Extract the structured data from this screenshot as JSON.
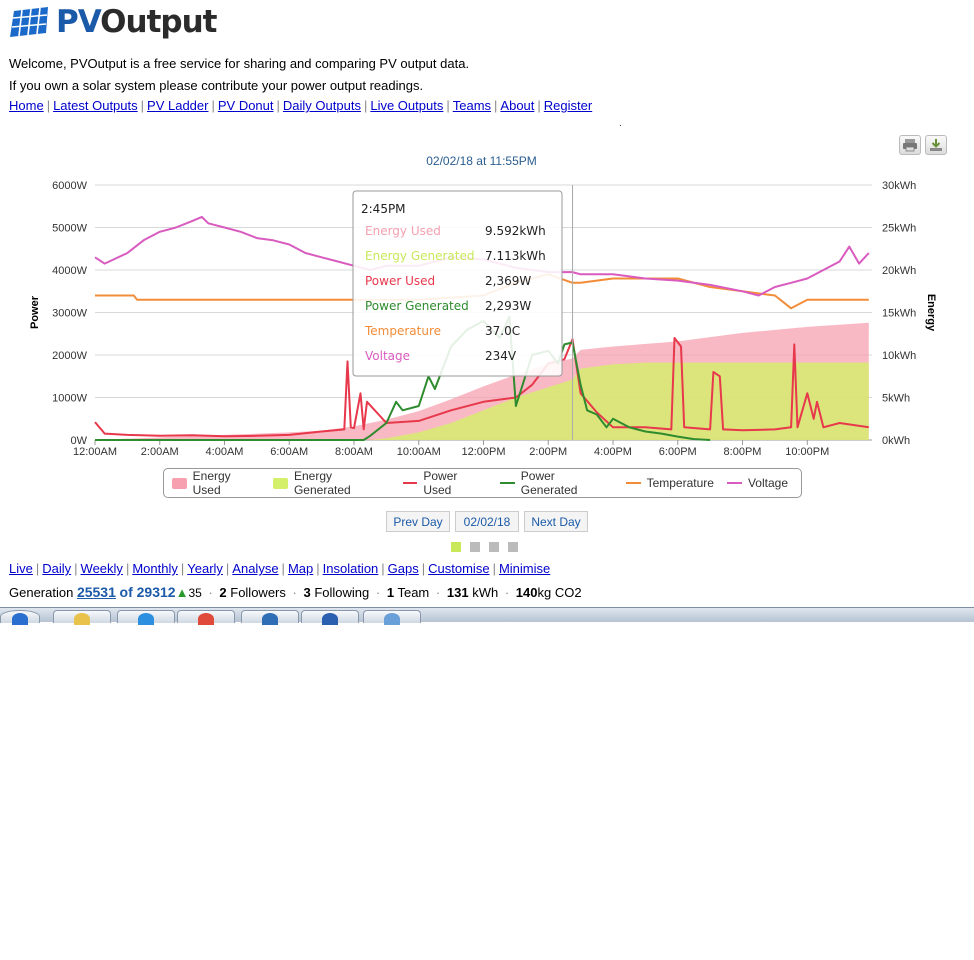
{
  "logo": {
    "text_pv": "PV",
    "text_out": "Output"
  },
  "intro": {
    "line1": "Welcome, PVOutput is a free service for sharing and comparing PV output data.",
    "line2": "If you own a solar system please contribute your power output readings."
  },
  "nav": [
    "Home",
    "Latest Outputs",
    "PV Ladder",
    "PV Donut",
    "Daily Outputs",
    "Live Outputs",
    "Teams",
    "About",
    "Register"
  ],
  "page_dot": ".",
  "chart_buttons": {
    "print_icon": "printer-icon",
    "download_icon": "download-icon"
  },
  "tooltip": {
    "time": "2:45PM",
    "rows": [
      {
        "label": "Energy Used",
        "value": "9.592kWh",
        "color": "#f4a0b0"
      },
      {
        "label": "Energy Generated",
        "value": "7.113kWh",
        "color": "#c8e85a"
      },
      {
        "label": "Power Used",
        "value": "2,369W",
        "color": "#e8384c"
      },
      {
        "label": "Power Generated",
        "value": "2,293W",
        "color": "#2e8b2e"
      },
      {
        "label": "Temperature",
        "value": "37.0C",
        "color": "#f28c38"
      },
      {
        "label": "Voltage",
        "value": "234V",
        "color": "#d95bbf"
      }
    ]
  },
  "legend": [
    {
      "label": "Energy Used",
      "color": "#f7a1b0",
      "kind": "area"
    },
    {
      "label": "Energy Generated",
      "color": "#d4f06a",
      "kind": "area"
    },
    {
      "label": "Power Used",
      "color": "#e8384c",
      "kind": "line"
    },
    {
      "label": "Power Generated",
      "color": "#2e8b2e",
      "kind": "line"
    },
    {
      "label": "Temperature",
      "color": "#f28c38",
      "kind": "line"
    },
    {
      "label": "Voltage",
      "color": "#d95bbf",
      "kind": "line"
    }
  ],
  "day_nav": {
    "prev": "Prev Day",
    "date": "02/02/18",
    "next": "Next Day"
  },
  "subnav": [
    "Live",
    "Daily",
    "Weekly",
    "Monthly",
    "Yearly",
    "Analyse",
    "Map",
    "Insolation",
    "Gaps",
    "Customise",
    "Minimise"
  ],
  "generation": {
    "label": "Generation",
    "rank": "25531",
    "of_text": "of 29312",
    "arrow": "▲",
    "change": "35",
    "followers_count": "2",
    "followers_label": "Followers",
    "following_count": "3",
    "following_label": "Following",
    "team_count": "1",
    "team_label": "Team",
    "kwh_count": "131",
    "kwh_label": "kWh",
    "co2_count": "140",
    "co2_label": "kg CO2"
  },
  "chart_data": {
    "type": "line",
    "title": "02/02/18 at 11:55PM",
    "ylabel_left": "Power",
    "ylabel_right": "Energy",
    "y_left_ticks": [
      "0W",
      "1000W",
      "2000W",
      "3000W",
      "4000W",
      "5000W",
      "6000W"
    ],
    "y_right_ticks": [
      "0kWh",
      "5kWh",
      "10kWh",
      "15kWh",
      "20kWh",
      "25kWh",
      "30kWh"
    ],
    "ylim_left": [
      0,
      6000
    ],
    "ylim_right": [
      0,
      30
    ],
    "x_ticks": [
      "12:00AM",
      "2:00AM",
      "4:00AM",
      "6:00AM",
      "8:00AM",
      "10:00AM",
      "12:00PM",
      "2:00PM",
      "4:00PM",
      "6:00PM",
      "8:00PM",
      "10:00PM"
    ],
    "x_hours_range": [
      0,
      24
    ],
    "series": [
      {
        "name": "Energy Used",
        "axis": "right",
        "type": "area",
        "x": [
          0,
          2,
          4,
          6,
          7,
          8,
          9,
          10,
          11,
          12,
          13,
          14,
          14.75,
          15,
          16,
          18,
          20,
          22,
          23.9
        ],
        "y": [
          0,
          0.3,
          0.6,
          0.9,
          1.1,
          1.6,
          2.4,
          3.4,
          4.8,
          6.3,
          7.7,
          9.0,
          9.592,
          10.6,
          11.0,
          11.6,
          12.6,
          13.3,
          13.8
        ]
      },
      {
        "name": "Energy Generated",
        "axis": "right",
        "type": "area",
        "x": [
          0,
          8.5,
          9,
          10,
          11,
          12,
          13,
          14,
          14.75,
          15,
          16,
          17,
          18,
          20,
          22,
          23.9
        ],
        "y": [
          0,
          0,
          0.2,
          0.9,
          2.0,
          3.5,
          5.0,
          6.2,
          7.113,
          8.4,
          8.9,
          9.1,
          9.1,
          9.1,
          9.1,
          9.1
        ]
      },
      {
        "name": "Power Used",
        "axis": "left",
        "type": "line",
        "x": [
          0,
          0.3,
          1,
          2,
          3,
          4,
          5,
          6,
          7,
          7.7,
          7.8,
          7.9,
          8,
          8.2,
          8.3,
          8.4,
          9,
          10,
          11,
          12,
          13,
          13.5,
          14,
          14.5,
          14.75,
          15,
          15.5,
          16,
          17,
          17.8,
          17.9,
          18.1,
          18.2,
          19,
          19.1,
          19.3,
          19.4,
          20,
          21,
          21.5,
          21.6,
          21.7,
          22,
          22.2,
          22.3,
          22.5,
          23,
          23.9
        ],
        "y": [
          420,
          150,
          120,
          100,
          110,
          90,
          100,
          120,
          200,
          250,
          1850,
          300,
          280,
          1100,
          250,
          900,
          400,
          450,
          700,
          900,
          1000,
          1300,
          1800,
          1900,
          2369,
          1100,
          650,
          300,
          300,
          250,
          2400,
          2200,
          300,
          250,
          1600,
          1500,
          250,
          230,
          250,
          300,
          2250,
          300,
          1100,
          500,
          900,
          300,
          400,
          300
        ]
      },
      {
        "name": "Power Generated",
        "axis": "left",
        "type": "line",
        "x": [
          0,
          8.3,
          8.5,
          9,
          9.3,
          9.5,
          10,
          10.3,
          10.5,
          11,
          11.5,
          12,
          12.5,
          12.8,
          13,
          13.5,
          14,
          14.3,
          14.5,
          14.75,
          15,
          15.2,
          15.5,
          15.8,
          16,
          16.5,
          17,
          17.5,
          18,
          18.5,
          19
        ],
        "y": [
          0,
          0,
          100,
          400,
          900,
          700,
          800,
          1500,
          1200,
          2200,
          2600,
          2800,
          2400,
          2900,
          800,
          2000,
          2100,
          1800,
          2250,
          2293,
          1300,
          700,
          600,
          300,
          500,
          300,
          200,
          150,
          80,
          20,
          0
        ]
      },
      {
        "name": "Temperature",
        "axis": "left_scaled",
        "type": "line",
        "x": [
          0,
          1.2,
          1.3,
          2,
          4,
          6,
          8,
          10,
          12,
          13,
          14,
          14.75,
          15,
          16,
          17,
          18,
          19,
          20,
          21,
          21.5,
          22,
          23,
          23.9
        ],
        "y": [
          3400,
          3400,
          3300,
          3300,
          3300,
          3300,
          3300,
          3300,
          3400,
          3700,
          3900,
          3700,
          3700,
          3800,
          3800,
          3800,
          3600,
          3500,
          3400,
          3100,
          3300,
          3300,
          3300
        ]
      },
      {
        "name": "Voltage",
        "axis": "left_scaled",
        "type": "line",
        "x": [
          0,
          0.3,
          1,
          1.5,
          2,
          2.5,
          3,
          3.3,
          3.5,
          4,
          4.5,
          5,
          5.5,
          6,
          6.5,
          7,
          7.5,
          8,
          8.5,
          9,
          10,
          11,
          12,
          13,
          14,
          14.75,
          15,
          16,
          17,
          18,
          19,
          20,
          20.5,
          21,
          21.5,
          22,
          22.5,
          23,
          23.3,
          23.6,
          23.9
        ],
        "y": [
          4300,
          4150,
          4400,
          4700,
          4900,
          5000,
          5150,
          5250,
          5100,
          5000,
          4900,
          4750,
          4700,
          4600,
          4400,
          4300,
          4200,
          4100,
          4000,
          4100,
          4100,
          4300,
          4250,
          4050,
          3950,
          3950,
          3900,
          3900,
          3800,
          3750,
          3650,
          3500,
          3400,
          3600,
          3700,
          3800,
          4000,
          4200,
          4550,
          4150,
          4400
        ]
      }
    ],
    "hover_x": 14.75,
    "grid": true,
    "legend_position": "bottom"
  },
  "taskbar": {
    "buttons": [
      "start-orb-icon",
      "folder-icon",
      "internet-explorer-icon",
      "chrome-icon",
      "globe-icon",
      "word-icon",
      "app-icon"
    ]
  }
}
